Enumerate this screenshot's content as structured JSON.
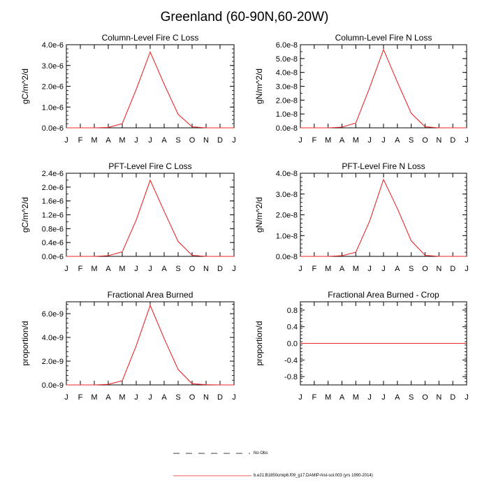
{
  "title": "Greenland (60-90N,60-20W)",
  "month_labels": [
    "J",
    "F",
    "M",
    "A",
    "M",
    "J",
    "J",
    "A",
    "S",
    "O",
    "N",
    "D",
    "J"
  ],
  "legend": {
    "obs_label": "No Obs",
    "model_label": "b.e21.B1850cmip6.f09_g17.DAMIP-hist-sol.003 (yrs 1990-2014)"
  },
  "colors": {
    "model_line": "#e8272a",
    "obs_line": "#000000",
    "axis": "#000000"
  },
  "chart_data": [
    {
      "type": "line",
      "title": "Column-Level Fire C Loss",
      "ylabel": "gC/m^2/d",
      "x": [
        1,
        2,
        3,
        4,
        5,
        6,
        7,
        8,
        9,
        10,
        11,
        12,
        13
      ],
      "ylim": [
        0,
        4e-06
      ],
      "yticks": [
        0,
        1e-06,
        2e-06,
        3e-06,
        4e-06
      ],
      "ytick_labels": [
        "0.0e-6",
        "1.0e-6",
        "2.0e-6",
        "3.0e-6",
        "4.0e-6"
      ],
      "series": [
        {
          "values": [
            0,
            0,
            0,
            2e-08,
            2e-07,
            1.85e-06,
            3.65e-06,
            2.1e-06,
            6.5e-07,
            5e-08,
            0,
            0,
            0
          ]
        }
      ]
    },
    {
      "type": "line",
      "title": "Column-Level Fire N Loss",
      "ylabel": "gN/m^2/d",
      "x": [
        1,
        2,
        3,
        4,
        5,
        6,
        7,
        8,
        9,
        10,
        11,
        12,
        13
      ],
      "ylim": [
        0,
        6e-08
      ],
      "yticks": [
        0,
        1e-08,
        2e-08,
        3e-08,
        4e-08,
        5e-08,
        6e-08
      ],
      "ytick_labels": [
        "0.0e-8",
        "1.0e-8",
        "2.0e-8",
        "3.0e-8",
        "4.0e-8",
        "5.0e-8",
        "6.0e-8"
      ],
      "series": [
        {
          "values": [
            0,
            0,
            0,
            5e-10,
            3.5e-09,
            2.9e-08,
            5.65e-08,
            3.3e-08,
            1.05e-08,
            8e-10,
            0,
            0,
            0
          ]
        }
      ]
    },
    {
      "type": "line",
      "title": "PFT-Level Fire C Loss",
      "ylabel": "gC/m^2/d",
      "x": [
        1,
        2,
        3,
        4,
        5,
        6,
        7,
        8,
        9,
        10,
        11,
        12,
        13
      ],
      "ylim": [
        0,
        2.4e-06
      ],
      "yticks": [
        0,
        4e-07,
        8e-07,
        1.2e-06,
        1.6e-06,
        2e-06,
        2.4e-06
      ],
      "ytick_labels": [
        "0.0e-6",
        "0.4e-6",
        "0.8e-6",
        "1.2e-6",
        "1.6e-6",
        "2.0e-6",
        "2.4e-6"
      ],
      "series": [
        {
          "values": [
            0,
            0,
            0,
            2e-08,
            1.3e-07,
            1.05e-06,
            2.2e-06,
            1.3e-06,
            4.3e-07,
            3e-08,
            0,
            0,
            0
          ]
        }
      ]
    },
    {
      "type": "line",
      "title": "PFT-Level Fire N Loss",
      "ylabel": "gN/m^2/d",
      "x": [
        1,
        2,
        3,
        4,
        5,
        6,
        7,
        8,
        9,
        10,
        11,
        12,
        13
      ],
      "ylim": [
        0,
        4e-08
      ],
      "yticks": [
        0,
        1e-08,
        2e-08,
        3e-08,
        4e-08
      ],
      "ytick_labels": [
        "0.0e-8",
        "1.0e-8",
        "2.0e-8",
        "3.0e-8",
        "4.0e-8"
      ],
      "series": [
        {
          "values": [
            0,
            0,
            0,
            3e-10,
            2e-09,
            1.7e-08,
            3.7e-08,
            2.3e-08,
            7.5e-09,
            5e-10,
            0,
            0,
            0
          ]
        }
      ]
    },
    {
      "type": "line",
      "title": "Fractional Area Burned",
      "ylabel": "proportion/d",
      "x": [
        1,
        2,
        3,
        4,
        5,
        6,
        7,
        8,
        9,
        10,
        11,
        12,
        13
      ],
      "ylim": [
        0,
        7e-09
      ],
      "yticks": [
        0,
        2e-09,
        4e-09,
        6e-09
      ],
      "ytick_labels": [
        "0.0e-9",
        "2.0e-9",
        "4.0e-9",
        "6.0e-9"
      ],
      "series": [
        {
          "values": [
            0,
            0,
            0,
            5e-11,
            3.5e-10,
            3.3e-09,
            6.7e-09,
            3.9e-09,
            1.3e-09,
            1e-10,
            2e-11,
            0,
            0
          ]
        }
      ]
    },
    {
      "type": "line",
      "title": "Fractional Area Burned - Crop",
      "ylabel": "proportion/d",
      "x": [
        1,
        2,
        3,
        4,
        5,
        6,
        7,
        8,
        9,
        10,
        11,
        12,
        13
      ],
      "ylim": [
        -1.0,
        1.0
      ],
      "yticks": [
        -0.8,
        -0.4,
        0,
        0.4,
        0.8
      ],
      "ytick_labels": [
        "-0.8",
        "-0.4",
        "0.0",
        "0.4",
        "0.8"
      ],
      "series": [
        {
          "values": [
            0,
            0,
            0,
            0,
            0,
            0,
            0,
            0,
            0,
            0,
            0,
            0,
            0
          ]
        }
      ]
    }
  ]
}
